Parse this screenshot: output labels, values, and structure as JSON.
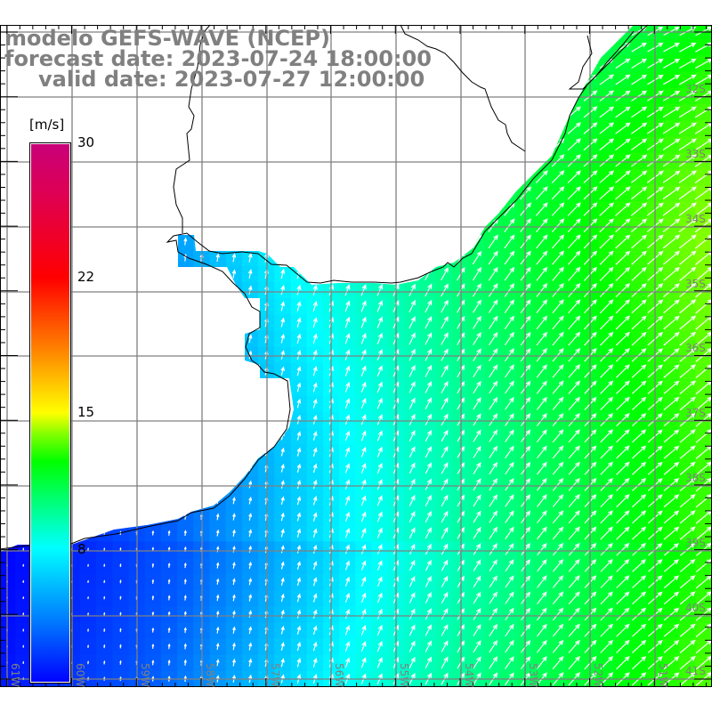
{
  "title": {
    "line1": "modelo GEFS-WAVE (NCEP)",
    "line2": "forecast date: 2023-07-24 18:00:00",
    "line3": "valid date: 2023-07-27 12:00:00"
  },
  "colorbar": {
    "unit": "[m/s]",
    "ticks": [
      "30",
      "22",
      "15",
      "8"
    ],
    "colors": {
      "min": "#0000ff",
      "low": "#00ffff",
      "mid": "#00ff00",
      "high": "#ffff00",
      "higher": "#ff0000",
      "max": "#c8007a"
    }
  },
  "axes": {
    "lon_labels": [
      "61W",
      "60W",
      "59W",
      "58W",
      "57W",
      "56W",
      "55W",
      "54W",
      "53W",
      "52W",
      "51W"
    ],
    "lat_labels": [
      "32S",
      "33S",
      "34S",
      "35S",
      "36S",
      "37S",
      "38S",
      "39S",
      "40S",
      "41S"
    ]
  },
  "field": {
    "variable": "wind speed",
    "arrow_color": "#ffffff",
    "grid_color": "#808080",
    "coast_color": "#000000"
  }
}
